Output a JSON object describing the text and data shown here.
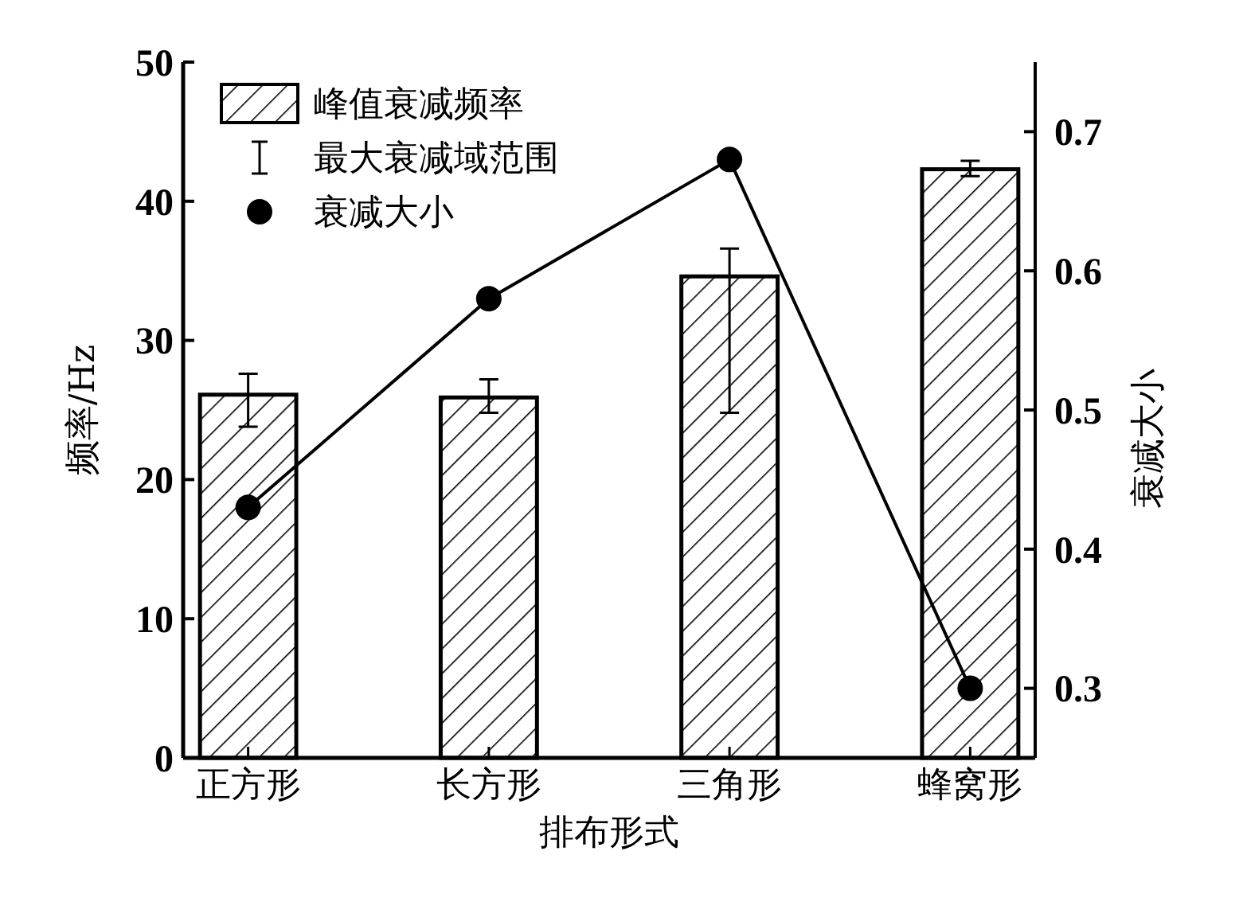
{
  "chart_data": {
    "type": "bar",
    "xlabel": "排布形式",
    "ylabel": "频率/Hz",
    "y2label": "衰减大小",
    "categories": [
      "正方形",
      "长方形",
      "三角形",
      "蜂窝形"
    ],
    "series": [
      {
        "name": "峰值衰减频率",
        "color": "#000000",
        "values": [
          26.1,
          25.9,
          34.6,
          42.3
        ],
        "errors": [
          [
            23.8,
            27.6
          ],
          [
            24.8,
            27.2
          ],
          [
            24.8,
            36.6
          ],
          [
            41.8,
            42.9
          ]
        ]
      },
      {
        "name": "衰减大小",
        "type": "line",
        "axis": "y2",
        "color": "#000000",
        "values": [
          0.43,
          0.58,
          0.68,
          0.3
        ]
      }
    ],
    "annotations": [
      "最大衰减域范围"
    ],
    "ylim": [
      0,
      50
    ],
    "yticks": [
      0,
      10,
      20,
      30,
      40,
      50
    ],
    "y2lim": [
      0.25,
      0.75
    ],
    "y2ticks": [
      0.3,
      0.4,
      0.5,
      0.6,
      0.7
    ],
    "marker": "circle",
    "line_style": "solid",
    "legend": "top left",
    "grid": false
  }
}
